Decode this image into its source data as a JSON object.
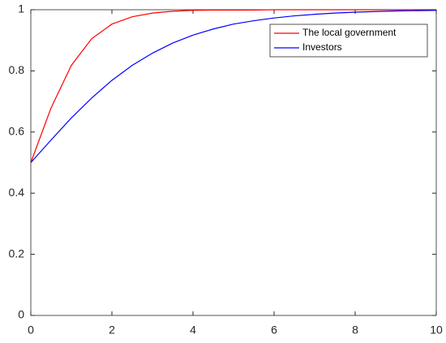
{
  "chart_data": {
    "type": "line",
    "x": [
      0,
      0.5,
      1,
      1.5,
      2,
      2.5,
      3,
      3.5,
      4,
      4.5,
      5,
      5.5,
      6,
      6.5,
      7,
      7.5,
      8,
      8.5,
      9,
      9.5,
      10
    ],
    "series": [
      {
        "name": "The local government",
        "color": "#ff0000",
        "values": [
          0.5,
          0.679,
          0.818,
          0.905,
          0.953,
          0.977,
          0.989,
          0.995,
          0.998,
          0.999,
          0.999,
          0.999,
          1,
          1,
          1,
          1,
          1,
          1,
          1,
          1,
          1
        ]
      },
      {
        "name": "Investors",
        "color": "#0000ff",
        "values": [
          0.5,
          0.574,
          0.646,
          0.711,
          0.769,
          0.818,
          0.858,
          0.891,
          0.917,
          0.937,
          0.953,
          0.964,
          0.973,
          0.98,
          0.985,
          0.989,
          0.992,
          0.994,
          0.996,
          0.997,
          0.998
        ]
      }
    ],
    "xlim": [
      0,
      10
    ],
    "xticks": [
      0,
      2,
      4,
      6,
      8,
      10
    ],
    "ylim": [
      0,
      1
    ],
    "yticks": [
      0,
      0.2,
      0.4,
      0.6,
      0.8,
      1
    ],
    "grid": false,
    "legend": "northeast"
  }
}
